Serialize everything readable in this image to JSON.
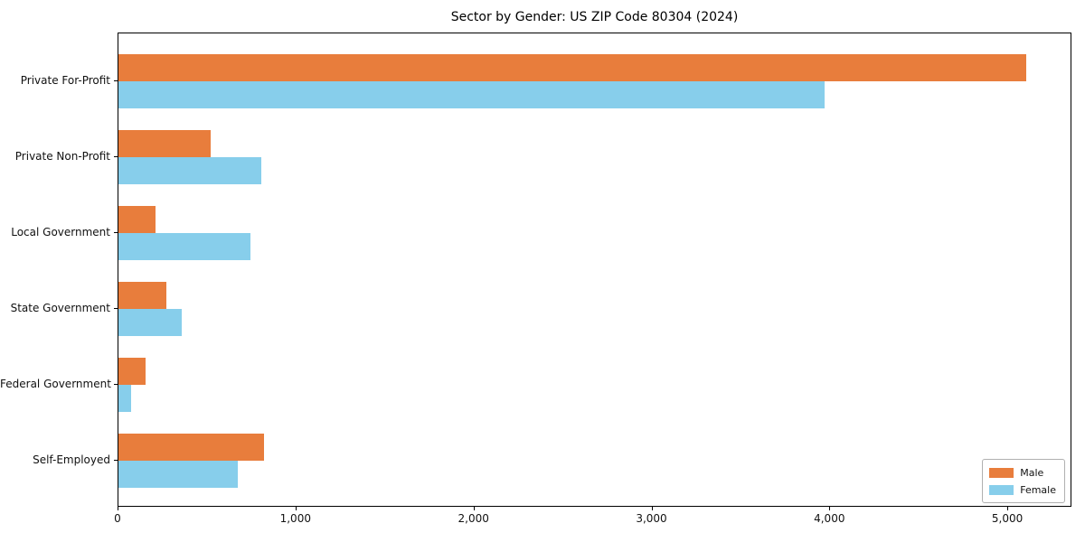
{
  "chart_data": {
    "type": "bar",
    "orientation": "horizontal",
    "title": "Sector by Gender: US ZIP Code 80304 (2024)",
    "categories": [
      "Private For-Profit",
      "Private Non-Profit",
      "Local Government",
      "State Government",
      "Federal Government",
      "Self-Employed"
    ],
    "series": [
      {
        "name": "Male",
        "color": "#e87d3c",
        "values": [
          5100,
          520,
          210,
          270,
          150,
          820
        ]
      },
      {
        "name": "Female",
        "color": "#87ceeb",
        "values": [
          3970,
          800,
          740,
          355,
          70,
          670
        ]
      }
    ],
    "xlim": [
      0,
      5360
    ],
    "xticks": [
      0,
      1000,
      2000,
      3000,
      4000,
      5000
    ],
    "xtick_labels": [
      "0",
      "1,000",
      "2,000",
      "3,000",
      "4,000",
      "5,000"
    ],
    "xlabel": "",
    "ylabel": "",
    "grid": false,
    "legend_position": "lower right",
    "frame_color": "#000000",
    "background_color": "#ffffff"
  }
}
